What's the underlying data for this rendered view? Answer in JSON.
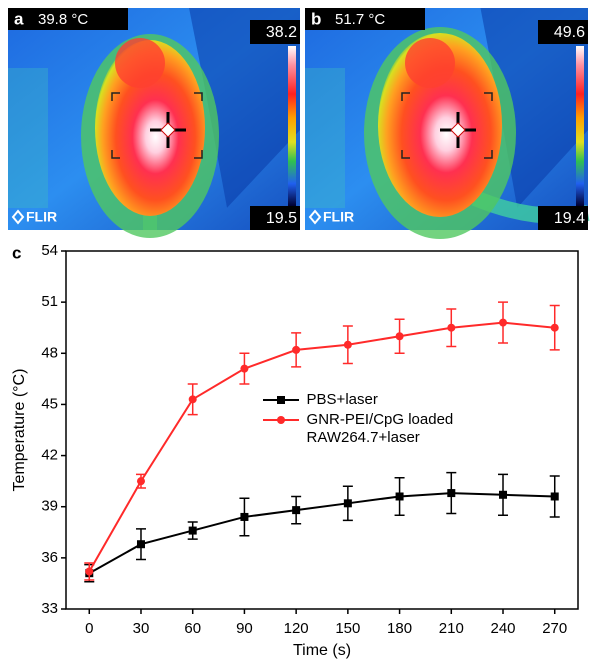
{
  "thermal_images": [
    {
      "label": "a",
      "temperature": "39.8 °C",
      "scale_max": "38.2",
      "scale_min": "19.5",
      "logo": "FLIR"
    },
    {
      "label": "b",
      "temperature": "51.7 °C",
      "scale_max": "49.6",
      "scale_min": "19.4",
      "logo": "FLIR"
    }
  ],
  "chart_data": {
    "type": "line",
    "panel_label": "c",
    "x_label": "Time (s)",
    "y_label": "Temperature (°C)",
    "x": [
      0,
      30,
      60,
      90,
      120,
      150,
      180,
      210,
      240,
      270
    ],
    "xlim": [
      -13.5,
      283.5
    ],
    "xticks": [
      0,
      30,
      60,
      90,
      120,
      150,
      180,
      210,
      240,
      270
    ],
    "ylim": [
      33,
      54
    ],
    "yticks": [
      33,
      36,
      39,
      42,
      45,
      48,
      51,
      54
    ],
    "legend": "center",
    "series": [
      {
        "name": "PBS+laser",
        "color": "#000000",
        "marker": "square",
        "values": [
          35.1,
          36.8,
          37.6,
          38.4,
          38.8,
          39.2,
          39.6,
          39.8,
          39.7,
          39.6
        ],
        "errors": [
          0.5,
          0.9,
          0.5,
          1.1,
          0.8,
          1.0,
          1.1,
          1.2,
          1.2,
          1.2
        ]
      },
      {
        "name": "GNR-PEI/CpG loaded RAW264.7+laser",
        "color": "#ff2a2a",
        "marker": "circle",
        "values": [
          35.2,
          40.5,
          45.3,
          47.1,
          48.2,
          48.5,
          49.0,
          49.5,
          49.8,
          49.5
        ],
        "errors": [
          0.5,
          0.4,
          0.9,
          0.9,
          1.0,
          1.1,
          1.0,
          1.1,
          1.2,
          1.3
        ]
      }
    ]
  }
}
